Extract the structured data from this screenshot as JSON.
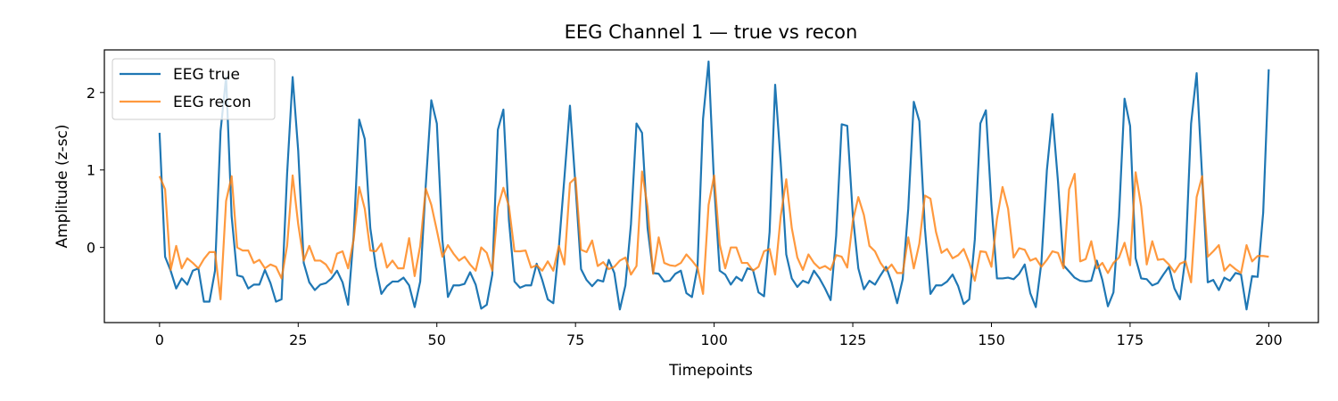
{
  "chart_data": {
    "type": "line",
    "title": "EEG Channel 1 — true vs recon",
    "xlabel": "Timepoints",
    "ylabel": "Amplitude (z-sc)",
    "xlim": [
      -9.95,
      208.95
    ],
    "ylim": [
      -0.97,
      2.55
    ],
    "xticks": [
      0,
      25,
      50,
      75,
      100,
      125,
      150,
      175,
      200
    ],
    "yticks": [
      0,
      1,
      2
    ],
    "legend_position": "top-left",
    "grid": false,
    "series": [
      {
        "name": "EEG true",
        "color": "#1f77b4",
        "values": [
          1.48,
          -0.12,
          -0.3,
          -0.53,
          -0.4,
          -0.48,
          -0.3,
          -0.27,
          -0.7,
          -0.7,
          -0.3,
          1.5,
          2.2,
          0.4,
          -0.36,
          -0.38,
          -0.53,
          -0.48,
          -0.48,
          -0.29,
          -0.46,
          -0.7,
          -0.67,
          0.95,
          2.2,
          1.25,
          -0.2,
          -0.45,
          -0.55,
          -0.48,
          -0.46,
          -0.4,
          -0.3,
          -0.45,
          -0.74,
          0.15,
          1.65,
          1.4,
          0.25,
          -0.25,
          -0.6,
          -0.5,
          -0.44,
          -0.44,
          -0.39,
          -0.49,
          -0.77,
          -0.44,
          0.8,
          1.9,
          1.6,
          0.1,
          -0.64,
          -0.49,
          -0.49,
          -0.47,
          -0.32,
          -0.48,
          -0.79,
          -0.74,
          -0.35,
          1.52,
          1.78,
          0.35,
          -0.44,
          -0.52,
          -0.49,
          -0.49,
          -0.21,
          -0.42,
          -0.67,
          -0.72,
          0.0,
          0.9,
          1.83,
          0.8,
          -0.28,
          -0.42,
          -0.5,
          -0.42,
          -0.44,
          -0.16,
          -0.33,
          -0.8,
          -0.49,
          0.3,
          1.6,
          1.48,
          0.25,
          -0.33,
          -0.34,
          -0.44,
          -0.43,
          -0.34,
          -0.3,
          -0.59,
          -0.64,
          -0.25,
          1.66,
          2.4,
          0.8,
          -0.3,
          -0.35,
          -0.48,
          -0.38,
          -0.43,
          -0.27,
          -0.29,
          -0.58,
          -0.63,
          0.2,
          2.1,
          1.1,
          -0.09,
          -0.4,
          -0.51,
          -0.43,
          -0.46,
          -0.3,
          -0.4,
          -0.53,
          -0.68,
          0.15,
          1.59,
          1.57,
          0.42,
          -0.27,
          -0.54,
          -0.43,
          -0.48,
          -0.36,
          -0.25,
          -0.45,
          -0.72,
          -0.41,
          0.5,
          1.88,
          1.63,
          0.25,
          -0.6,
          -0.49,
          -0.49,
          -0.44,
          -0.35,
          -0.5,
          -0.73,
          -0.67,
          0.1,
          1.6,
          1.77,
          0.55,
          -0.4,
          -0.4,
          -0.39,
          -0.41,
          -0.34,
          -0.22,
          -0.59,
          -0.77,
          -0.2,
          1.0,
          1.72,
          0.85,
          -0.23,
          -0.31,
          -0.39,
          -0.43,
          -0.44,
          -0.43,
          -0.17,
          -0.42,
          -0.76,
          -0.58,
          0.4,
          1.92,
          1.57,
          -0.14,
          -0.4,
          -0.41,
          -0.49,
          -0.46,
          -0.35,
          -0.25,
          -0.53,
          -0.67,
          -0.12,
          1.6,
          2.25,
          0.9,
          -0.45,
          -0.42,
          -0.55,
          -0.39,
          -0.43,
          -0.33,
          -0.35,
          -0.8,
          -0.37,
          -0.38,
          0.45,
          2.3
        ]
      },
      {
        "name": "EEG recon",
        "color": "#ff7f0e",
        "values": [
          0.92,
          0.75,
          -0.29,
          0.02,
          -0.27,
          -0.14,
          -0.2,
          -0.27,
          -0.15,
          -0.06,
          -0.06,
          -0.67,
          0.6,
          0.92,
          0.0,
          -0.04,
          -0.04,
          -0.2,
          -0.16,
          -0.27,
          -0.22,
          -0.25,
          -0.4,
          0.02,
          0.93,
          0.3,
          -0.17,
          0.02,
          -0.17,
          -0.17,
          -0.22,
          -0.33,
          -0.08,
          -0.05,
          -0.27,
          0.1,
          0.78,
          0.5,
          -0.04,
          -0.05,
          0.05,
          -0.26,
          -0.17,
          -0.27,
          -0.27,
          0.12,
          -0.37,
          0.02,
          0.76,
          0.55,
          0.22,
          -0.12,
          0.03,
          -0.08,
          -0.17,
          -0.12,
          -0.22,
          -0.3,
          0.0,
          -0.07,
          -0.3,
          0.52,
          0.77,
          0.53,
          -0.05,
          -0.05,
          -0.04,
          -0.26,
          -0.23,
          -0.3,
          -0.18,
          -0.3,
          0.02,
          -0.22,
          0.83,
          0.9,
          -0.03,
          -0.06,
          0.09,
          -0.24,
          -0.19,
          -0.28,
          -0.25,
          -0.17,
          -0.13,
          -0.35,
          -0.24,
          0.98,
          0.52,
          -0.34,
          0.13,
          -0.2,
          -0.23,
          -0.24,
          -0.2,
          -0.09,
          -0.17,
          -0.26,
          -0.6,
          0.55,
          0.93,
          0.04,
          -0.27,
          0.0,
          0.0,
          -0.2,
          -0.2,
          -0.3,
          -0.25,
          -0.05,
          -0.02,
          -0.35,
          0.4,
          0.88,
          0.25,
          -0.13,
          -0.29,
          -0.09,
          -0.2,
          -0.27,
          -0.24,
          -0.29,
          -0.1,
          -0.12,
          -0.26,
          0.34,
          0.65,
          0.42,
          0.02,
          -0.05,
          -0.2,
          -0.3,
          -0.22,
          -0.33,
          -0.33,
          0.13,
          -0.27,
          0.05,
          0.67,
          0.63,
          0.2,
          -0.07,
          -0.02,
          -0.14,
          -0.1,
          -0.02,
          -0.2,
          -0.43,
          -0.05,
          -0.06,
          -0.25,
          0.37,
          0.78,
          0.5,
          -0.13,
          -0.01,
          -0.03,
          -0.17,
          -0.14,
          -0.25,
          -0.16,
          -0.05,
          -0.07,
          -0.27,
          0.75,
          0.95,
          -0.18,
          -0.15,
          0.08,
          -0.27,
          -0.2,
          -0.33,
          -0.2,
          -0.13,
          0.06,
          -0.23,
          0.97,
          0.53,
          -0.22,
          0.08,
          -0.16,
          -0.15,
          -0.22,
          -0.32,
          -0.21,
          -0.18,
          -0.45,
          0.65,
          0.92,
          -0.12,
          -0.05,
          0.03,
          -0.3,
          -0.22,
          -0.28,
          -0.33,
          0.03,
          -0.18,
          -0.11,
          -0.11,
          -0.12
        ]
      }
    ]
  }
}
